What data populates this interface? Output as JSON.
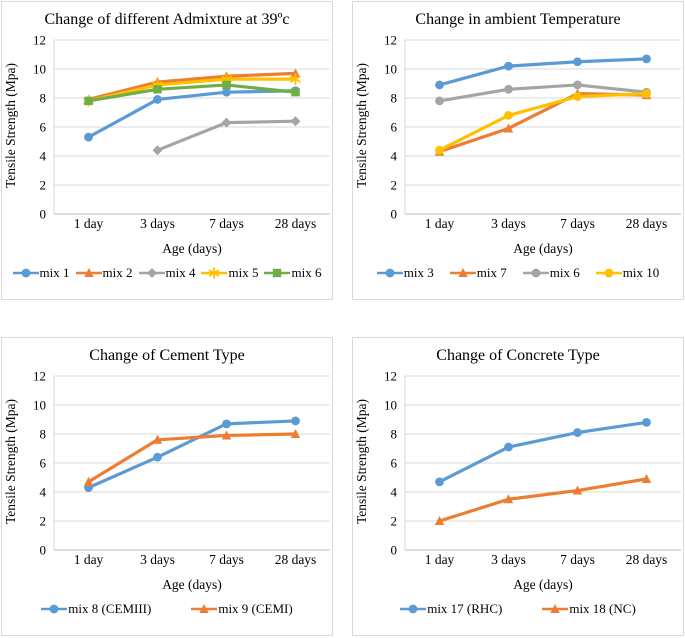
{
  "palette": {
    "grid": "#D9D9D9",
    "axis": "#BFBFBF",
    "text": "#000000",
    "panel_border": "#D9D9D9"
  },
  "chart_data": [
    {
      "type": "line",
      "title": "Change of different Admixture at 39ºc",
      "xlabel": "Age (days)",
      "ylabel": "Tensile Strength (Mpa)",
      "categories": [
        "1 day",
        "3 days",
        "7 days",
        "28 days"
      ],
      "ylim": [
        0,
        12
      ],
      "ytick_step": 2,
      "grid": true,
      "legend_position": "bottom",
      "series": [
        {
          "name": "mix 1",
          "color": "#5B9BD5",
          "marker": "circle",
          "values": [
            5.3,
            7.9,
            8.4,
            8.5
          ]
        },
        {
          "name": "mix 2",
          "color": "#ED7D31",
          "marker": "triangle",
          "values": [
            7.9,
            9.1,
            9.5,
            9.7
          ]
        },
        {
          "name": "mix 4",
          "color": "#A5A5A5",
          "marker": "diamond",
          "values": [
            null,
            4.4,
            6.3,
            6.4
          ]
        },
        {
          "name": "mix 5",
          "color": "#FFC000",
          "marker": "star",
          "values": [
            7.8,
            8.9,
            9.3,
            9.3
          ]
        },
        {
          "name": "mix 6",
          "color": "#70AD47",
          "marker": "square",
          "values": [
            7.8,
            8.6,
            8.9,
            8.4
          ]
        }
      ]
    },
    {
      "type": "line",
      "title": "Change in ambient Temperature",
      "xlabel": "Age (days)",
      "ylabel": "Tensile Strength (Mpa)",
      "categories": [
        "1 day",
        "3 days",
        "7 days",
        "28 days"
      ],
      "ylim": [
        0,
        12
      ],
      "ytick_step": 2,
      "grid": true,
      "legend_position": "bottom",
      "series": [
        {
          "name": "mix 3",
          "color": "#5B9BD5",
          "marker": "circle",
          "values": [
            8.9,
            10.2,
            10.5,
            10.7
          ]
        },
        {
          "name": "mix 7",
          "color": "#ED7D31",
          "marker": "triangle",
          "values": [
            4.3,
            5.9,
            8.3,
            8.2
          ]
        },
        {
          "name": "mix 6",
          "color": "#A5A5A5",
          "marker": "circle",
          "values": [
            7.8,
            8.6,
            8.9,
            8.4
          ]
        },
        {
          "name": "mix 10",
          "color": "#FFC000",
          "marker": "circle",
          "values": [
            4.4,
            6.8,
            8.1,
            8.3
          ]
        }
      ]
    },
    {
      "type": "line",
      "title": "Change of Cement Type",
      "xlabel": "Age (days)",
      "ylabel": "Tensile Strength (Mpa)",
      "categories": [
        "1 day",
        "3 days",
        "7 days",
        "28 days"
      ],
      "ylim": [
        0,
        12
      ],
      "ytick_step": 2,
      "grid": true,
      "legend_position": "bottom",
      "series": [
        {
          "name": "mix 8 (CEMIII)",
          "color": "#5B9BD5",
          "marker": "circle",
          "values": [
            4.3,
            6.4,
            8.7,
            8.9
          ]
        },
        {
          "name": "mix 9 (CEMI)",
          "color": "#ED7D31",
          "marker": "triangle",
          "values": [
            4.7,
            7.6,
            7.9,
            8.0
          ]
        }
      ]
    },
    {
      "type": "line",
      "title": "Change of Concrete Type",
      "xlabel": "Age (days)",
      "ylabel": "Tensile Strength (Mpa)",
      "categories": [
        "1 day",
        "3 days",
        "7 days",
        "28 days"
      ],
      "ylim": [
        0,
        12
      ],
      "ytick_step": 2,
      "grid": true,
      "legend_position": "bottom",
      "series": [
        {
          "name": "mix 17 (RHC)",
          "color": "#5B9BD5",
          "marker": "circle",
          "values": [
            4.7,
            7.1,
            8.1,
            8.8
          ]
        },
        {
          "name": "mix 18 (NC)",
          "color": "#ED7D31",
          "marker": "triangle",
          "values": [
            2.0,
            3.5,
            4.1,
            4.9
          ]
        }
      ]
    }
  ]
}
